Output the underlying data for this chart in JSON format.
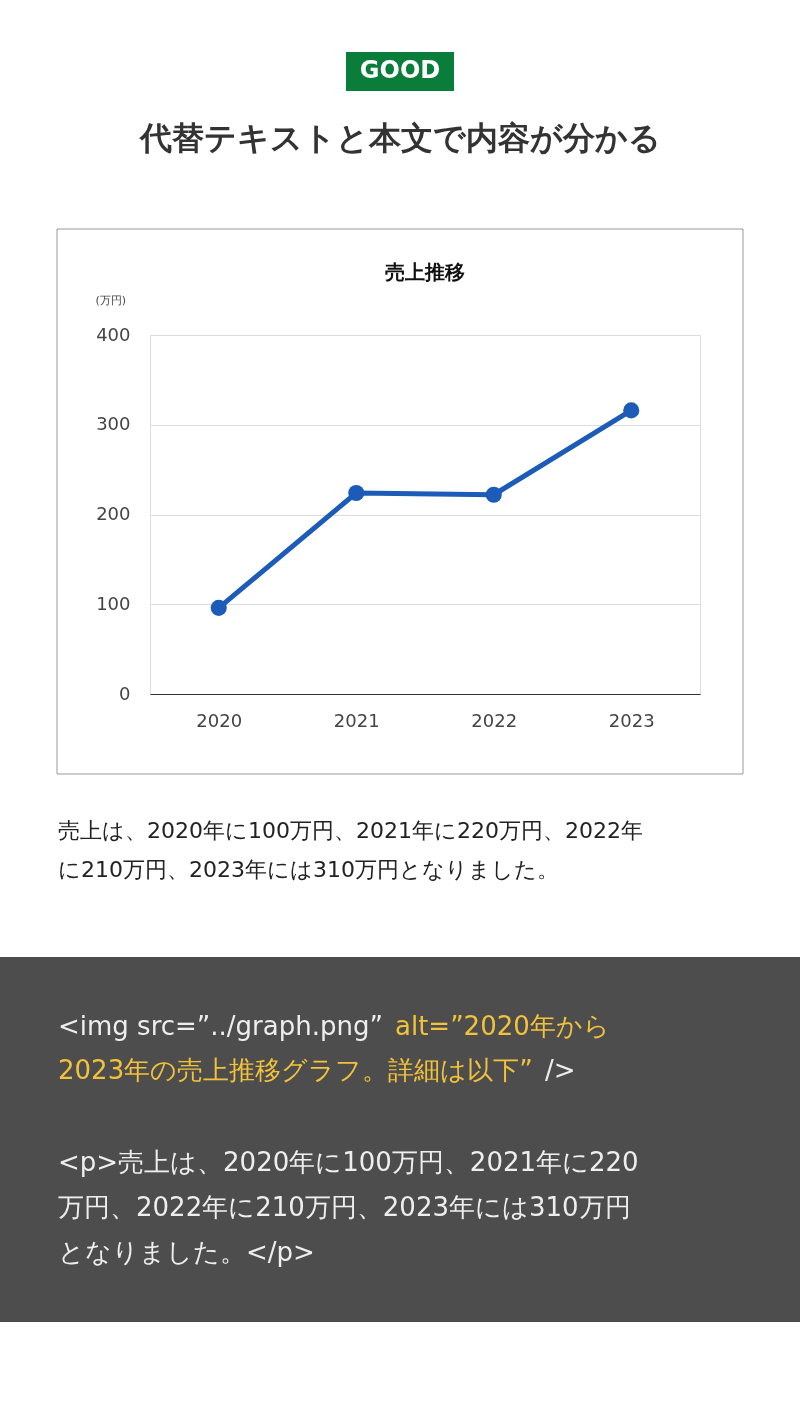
{
  "chart_data": {
    "type": "line",
    "title": "売上推移",
    "ylabel": "(万円)",
    "categories": [
      "2020",
      "2021",
      "2022",
      "2023"
    ],
    "series": [
      {
        "color": "#1c5bb8",
        "values": [
          96,
          224,
          222,
          316
        ]
      }
    ],
    "ylim": [
      0,
      400
    ],
    "yticks": [
      0,
      100,
      200,
      300,
      400
    ],
    "grid": "y",
    "marker": "circle",
    "annotations": [
      "GOOD",
      "代替テキストと本文で内容が分かる",
      "売上は、2020年に100万円、2021年に220万円、2022年",
      "に210万円、2023年には310万円となりました。",
      "<img src=”../graph.png”",
      "alt=”2020年から",
      "2023年の売上推移グラフ。詳細は以下”",
      "/>",
      "<p>売上は、2020年に100万円、2021年に220",
      "万円、2022年に210万円、2023年には310万円",
      "となりました。</p>"
    ]
  }
}
